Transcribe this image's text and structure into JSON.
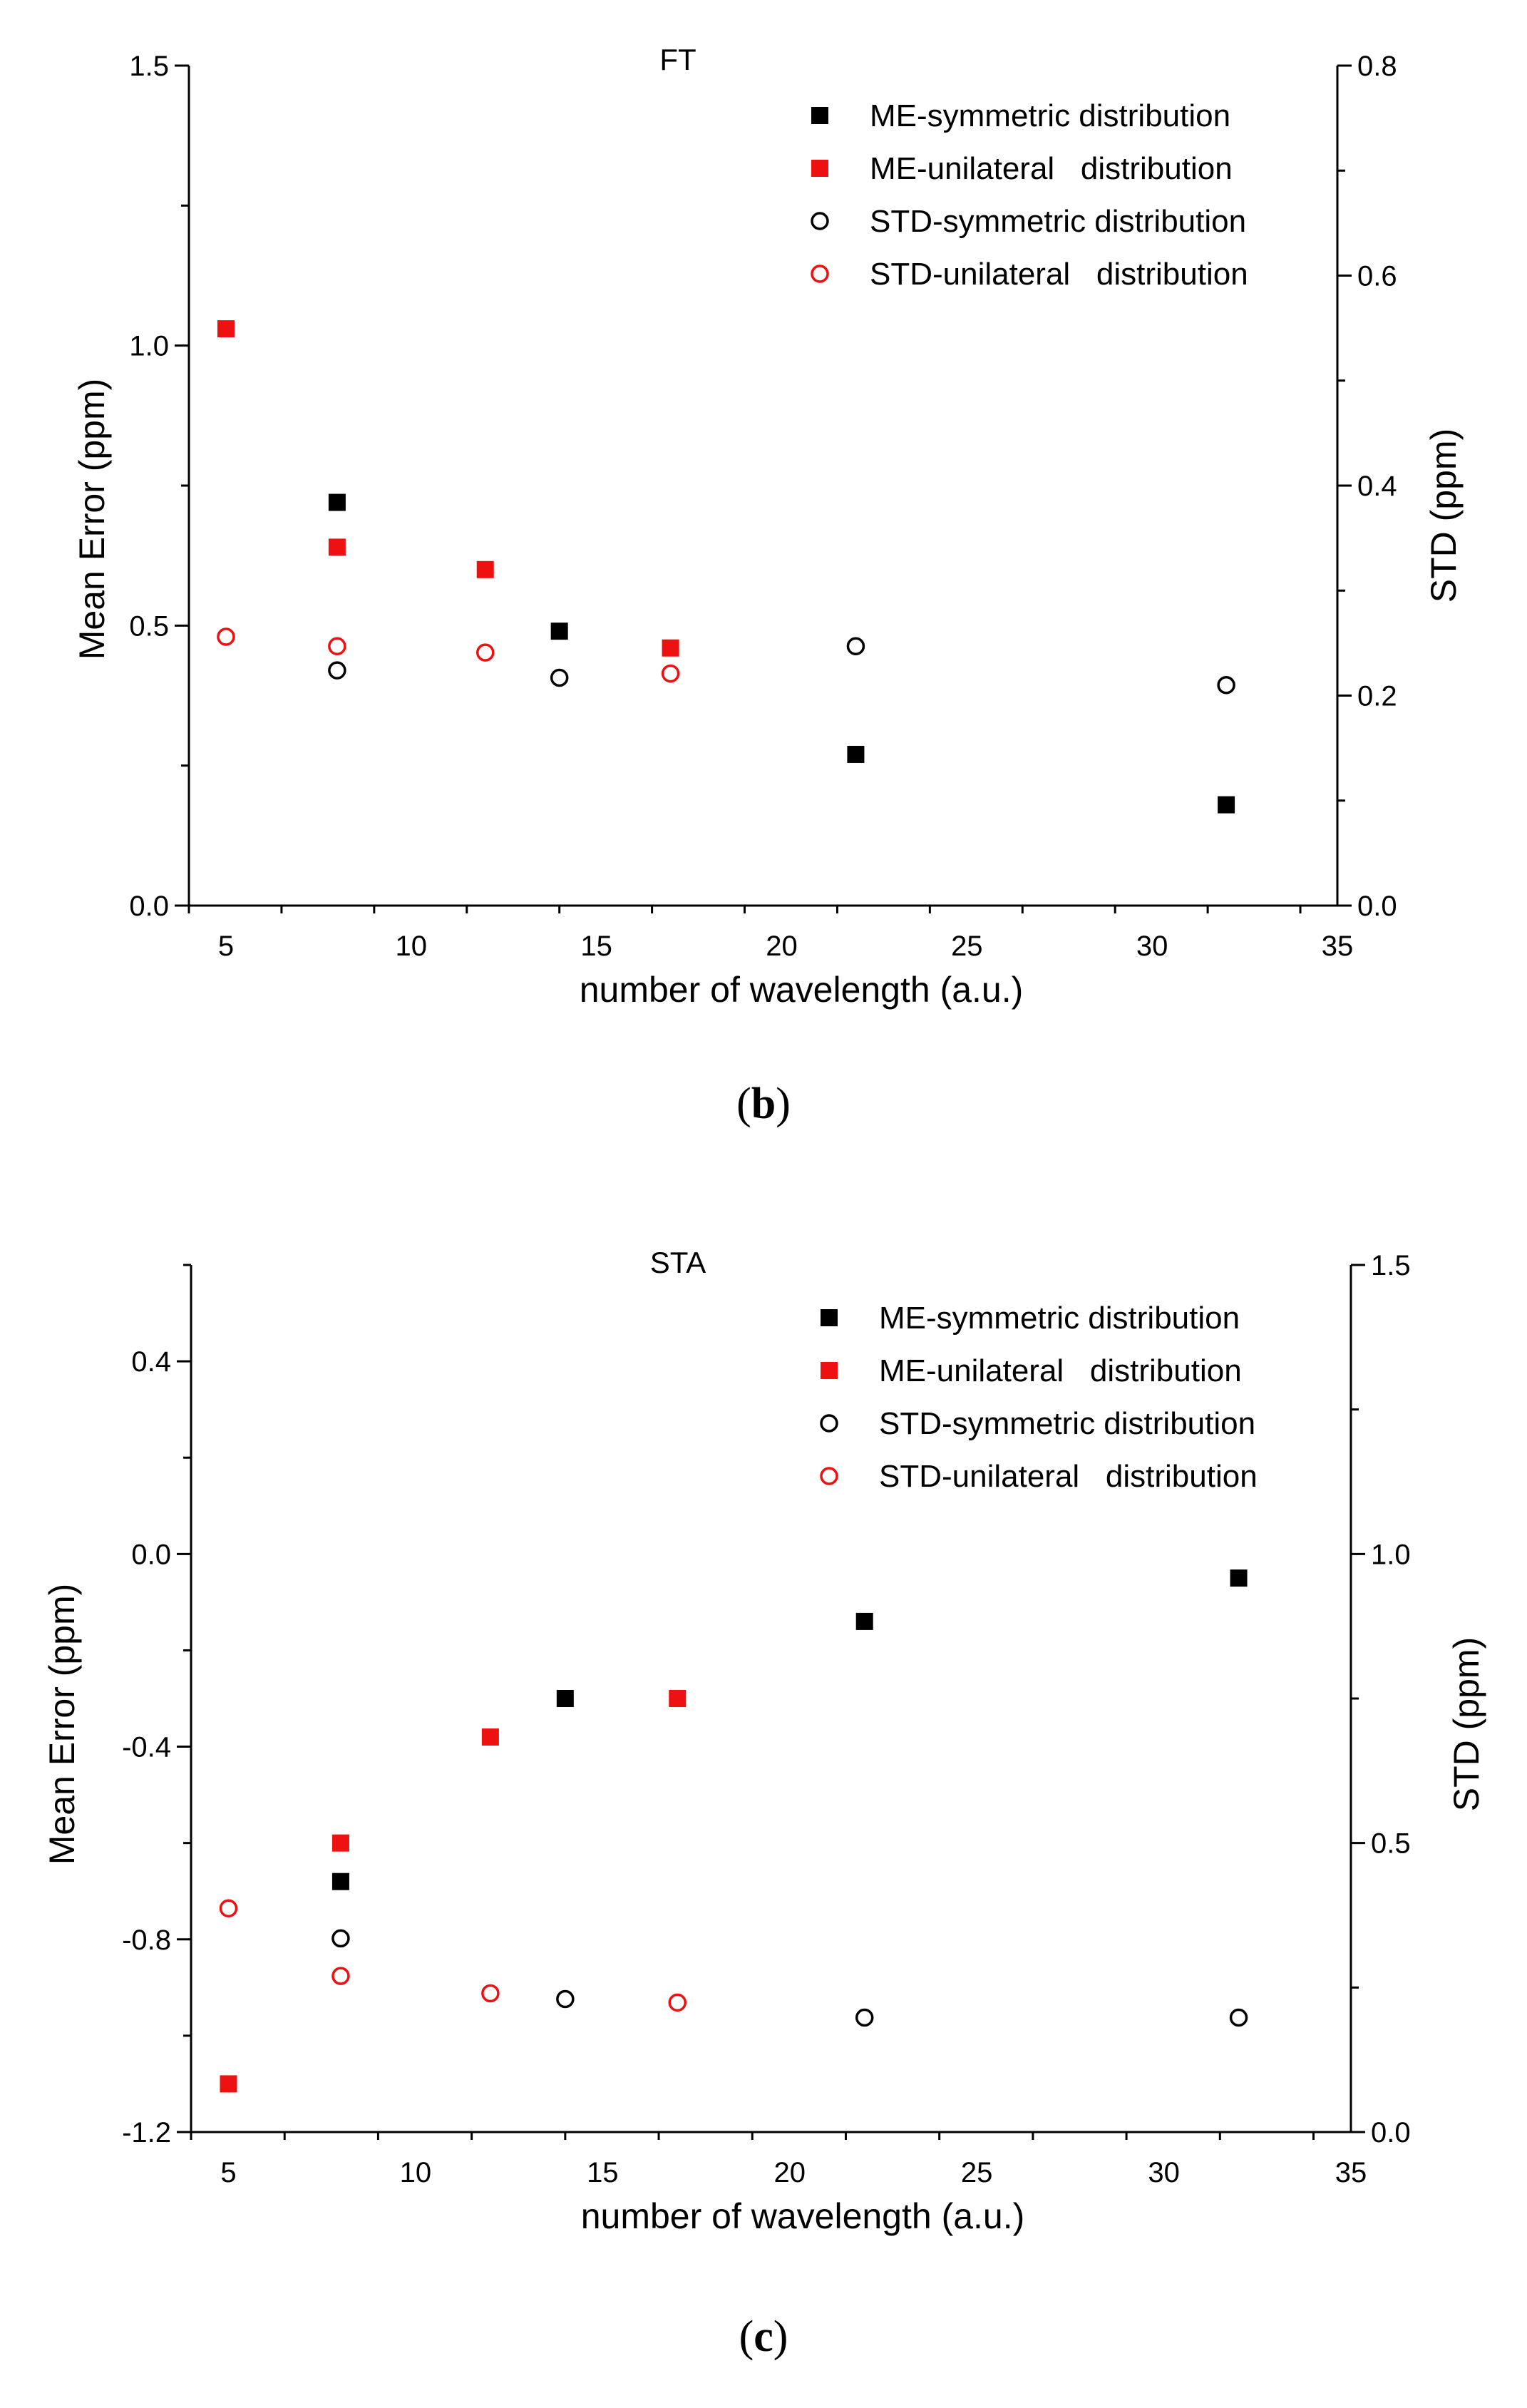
{
  "colors": {
    "symmetric": "#000000",
    "unilateral": "#ee1111",
    "axis": "#000000"
  },
  "chart_data": [
    {
      "type": "scatter",
      "panel_label": "b",
      "title": "FT",
      "xlabel": "number of wavelength (a.u.)",
      "ylabel_left": "Mean Error (ppm)",
      "ylabel_right": "STD (ppm)",
      "xlim": [
        4,
        35
      ],
      "ylim_left": [
        0,
        1.5
      ],
      "ylim_right": [
        0,
        0.8
      ],
      "xticks": [
        5,
        10,
        15,
        20,
        25,
        30,
        35
      ],
      "yticks_left": [
        "0.0",
        "0.5",
        "1.0",
        "1.5"
      ],
      "yticks_right": [
        "0.0",
        "0.2",
        "0.4",
        "0.6",
        "0.8"
      ],
      "legend_position": "top-right",
      "grid": false,
      "series": [
        {
          "name": "ME-symmetric distribution",
          "axis": "left",
          "marker": "filled-square",
          "color": "symmetric",
          "x": [
            8,
            14,
            22,
            32
          ],
          "y": [
            0.72,
            0.49,
            0.27,
            0.18
          ]
        },
        {
          "name": "ME-unilateral   distribution",
          "axis": "left",
          "marker": "filled-square",
          "color": "unilateral",
          "x": [
            5,
            8,
            12,
            17
          ],
          "y": [
            1.03,
            0.64,
            0.6,
            0.46
          ]
        },
        {
          "name": "STD-symmetric distribution",
          "axis": "right",
          "marker": "open-circle",
          "color": "symmetric",
          "x": [
            8,
            14,
            22,
            32
          ],
          "y": [
            0.224,
            0.217,
            0.247,
            0.21
          ]
        },
        {
          "name": "STD-unilateral   distribution",
          "axis": "right",
          "marker": "open-circle",
          "color": "unilateral",
          "x": [
            5,
            8,
            12,
            17
          ],
          "y": [
            0.256,
            0.247,
            0.241,
            0.221
          ]
        }
      ]
    },
    {
      "type": "scatter",
      "panel_label": "c",
      "title": "STA",
      "xlabel": "number of wavelength (a.u.)",
      "ylabel_left": "Mean Error (ppm)",
      "ylabel_right": "STD (ppm)",
      "xlim": [
        4,
        35
      ],
      "ylim_left": [
        -1.2,
        0.6
      ],
      "ylim_right": [
        0,
        1.5
      ],
      "xticks": [
        5,
        10,
        15,
        20,
        25,
        30,
        35
      ],
      "yticks_left": [
        "-1.2",
        "-0.8",
        "-0.4",
        "0.0",
        "0.4"
      ],
      "yticks_right": [
        "0.0",
        "0.5",
        "1.0",
        "1.5"
      ],
      "legend_position": "top-right",
      "grid": false,
      "series": [
        {
          "name": "ME-symmetric distribution",
          "axis": "left",
          "marker": "filled-square",
          "color": "symmetric",
          "x": [
            8,
            14,
            22,
            32
          ],
          "y": [
            -0.68,
            -0.3,
            -0.14,
            -0.05
          ]
        },
        {
          "name": "ME-unilateral   distribution",
          "axis": "left",
          "marker": "filled-square",
          "color": "unilateral",
          "x": [
            5,
            8,
            12,
            17
          ],
          "y": [
            -1.1,
            -0.6,
            -0.38,
            -0.3
          ]
        },
        {
          "name": "STD-symmetric distribution",
          "axis": "right",
          "marker": "open-circle",
          "color": "symmetric",
          "x": [
            8,
            14,
            22,
            32
          ],
          "y": [
            0.335,
            0.23,
            0.198,
            0.198
          ]
        },
        {
          "name": "STD-unilateral   distribution",
          "axis": "right",
          "marker": "open-circle",
          "color": "unilateral",
          "x": [
            5,
            8,
            12,
            17
          ],
          "y": [
            0.387,
            0.27,
            0.24,
            0.224
          ]
        }
      ]
    }
  ]
}
